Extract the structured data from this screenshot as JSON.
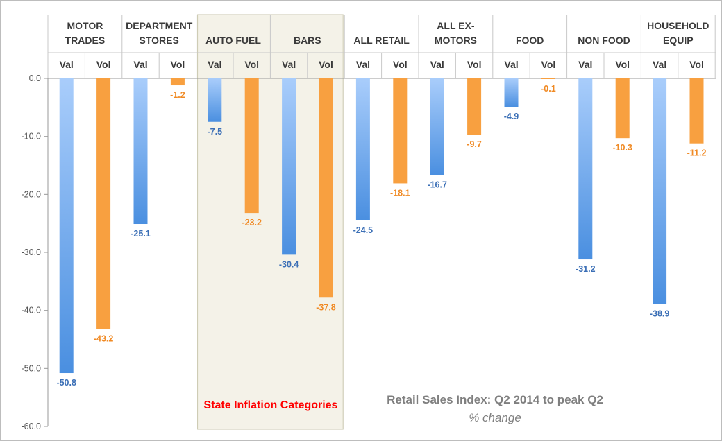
{
  "chart_data": {
    "type": "bar",
    "title": "Retail Sales Index: Q2 2014 to peak Q2",
    "subtitle": "% change",
    "highlight_label": "State Inflation Categories",
    "highlighted_categories": [
      "AUTO FUEL",
      "BARS"
    ],
    "ylim": [
      -60,
      0
    ],
    "yticks": [
      "0.0",
      "-10.0",
      "-20.0",
      "-30.0",
      "-40.0",
      "-50.0",
      "-60.0"
    ],
    "ytick_values": [
      0,
      -10,
      -20,
      -30,
      -40,
      -50,
      -60
    ],
    "sub_categories": [
      "Val",
      "Vol"
    ],
    "categories": [
      {
        "name": "MOTOR TRADES",
        "lines": [
          "MOTOR",
          "TRADES"
        ],
        "val": -50.8,
        "vol": -43.2,
        "val_label": "-50.8",
        "vol_label": "-43.2"
      },
      {
        "name": "DEPARTMENT STORES",
        "lines": [
          "DEPARTMENT",
          "STORES"
        ],
        "val": -25.1,
        "vol": -1.2,
        "val_label": "-25.1",
        "vol_label": "-1.2"
      },
      {
        "name": "AUTO FUEL",
        "lines": [
          "AUTO FUEL"
        ],
        "val": -7.5,
        "vol": -23.2,
        "val_label": "-7.5",
        "vol_label": "-23.2"
      },
      {
        "name": "BARS",
        "lines": [
          "BARS"
        ],
        "val": -30.4,
        "vol": -37.8,
        "val_label": "-30.4",
        "vol_label": "-37.8"
      },
      {
        "name": "ALL RETAIL",
        "lines": [
          "ALL RETAIL"
        ],
        "val": -24.5,
        "vol": -18.1,
        "val_label": "-24.5",
        "vol_label": "-18.1"
      },
      {
        "name": "ALL EX-MOTORS",
        "lines": [
          "ALL EX-",
          "MOTORS"
        ],
        "val": -16.7,
        "vol": -9.7,
        "val_label": "-16.7",
        "vol_label": "-9.7"
      },
      {
        "name": "FOOD",
        "lines": [
          "FOOD"
        ],
        "val": -4.9,
        "vol": -0.1,
        "val_label": "-4.9",
        "vol_label": "-0.1"
      },
      {
        "name": "NON FOOD",
        "lines": [
          "NON FOOD"
        ],
        "val": -31.2,
        "vol": -10.3,
        "val_label": "-31.2",
        "vol_label": "-10.3"
      },
      {
        "name": "HOUSEHOLD EQUIP",
        "lines": [
          "HOUSEHOLD",
          "EQUIP"
        ],
        "val": -38.9,
        "vol": -11.2,
        "val_label": "-38.9",
        "vol_label": "-11.2"
      }
    ],
    "colors": {
      "val_light": "#a9cdfb",
      "val_dark": "#4a8fe0",
      "vol": "#f8a040",
      "val_label": "#3b6fb6",
      "vol_label": "#f08a24",
      "highlight_fill": "#f4f2e8",
      "highlight_border": "#c9c6ad",
      "grid": "#c8c8c8"
    }
  }
}
